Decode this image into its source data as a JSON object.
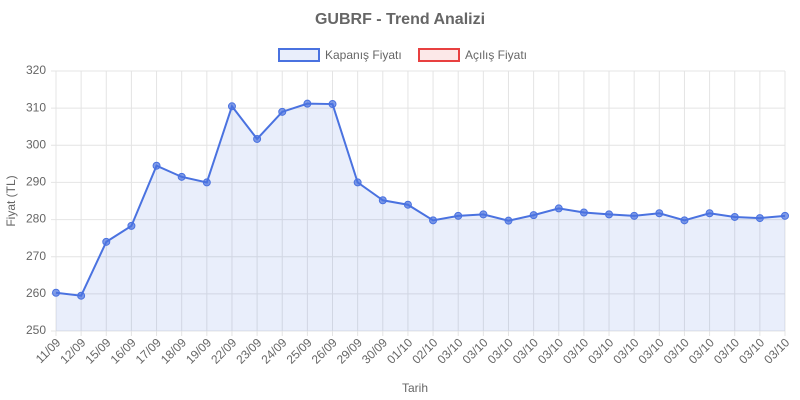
{
  "chart_data": {
    "type": "line",
    "title": "GUBRF - Trend Analizi",
    "x_label": "Tarih",
    "y_label": "Fiyat (TL)",
    "categories": [
      "11/09",
      "12/09",
      "15/09",
      "16/09",
      "17/09",
      "18/09",
      "19/09",
      "22/09",
      "23/09",
      "24/09",
      "25/09",
      "26/09",
      "29/09",
      "30/09",
      "01/10",
      "02/10",
      "03/10",
      "03/10",
      "03/10",
      "03/10",
      "03/10",
      "03/10",
      "03/10",
      "03/10",
      "03/10",
      "03/10",
      "03/10",
      "03/10",
      "03/10",
      "03/10"
    ],
    "series": [
      {
        "name": "Kapanış Fiyatı",
        "color": "#4a72e0",
        "fill": "rgba(74,114,224,0.12)",
        "values": [
          260.3,
          259.5,
          274,
          278.3,
          294.5,
          291.5,
          290,
          310.5,
          301.7,
          309,
          311.2,
          311.1,
          290,
          285.2,
          284,
          279.8,
          281,
          281.4,
          279.7,
          281.2,
          283,
          281.9,
          281.4,
          281,
          281.7,
          279.8,
          281.7,
          280.7,
          280.4,
          281
        ]
      },
      {
        "name": "Açılış Fiyatı",
        "color": "#e84040",
        "fill": "rgba(232,64,64,0.12)",
        "values": [
          null,
          null,
          null,
          null,
          null,
          null,
          null,
          null,
          null,
          null,
          null,
          null,
          null,
          null,
          null,
          null,
          null,
          null,
          null,
          null,
          null,
          null,
          null,
          null,
          null,
          null,
          null,
          null,
          null,
          null
        ]
      }
    ],
    "ylim": [
      250,
      320
    ],
    "yticks": [
      250,
      260,
      270,
      280,
      290,
      300,
      310,
      320
    ],
    "grid": true,
    "legend": "top"
  }
}
